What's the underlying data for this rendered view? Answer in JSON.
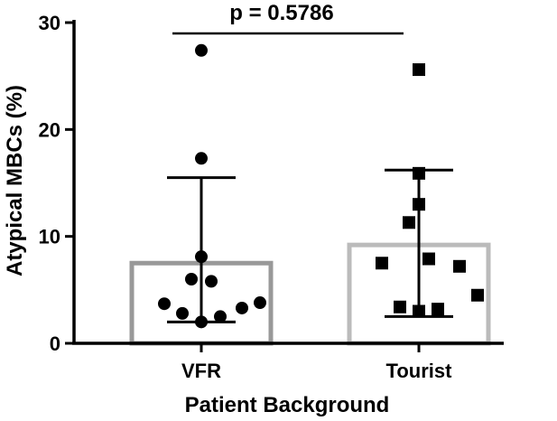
{
  "chart_data": {
    "type": "bar",
    "categories": [
      "VFR",
      "Tourist"
    ],
    "xlabel": "Patient Background",
    "ylabel": "Atypical MBCs (%)",
    "ylim": [
      0,
      30
    ],
    "yticks": [
      0,
      10,
      20,
      30
    ],
    "grid": false,
    "series": [
      {
        "category": "VFR",
        "mean": 7.5,
        "error_low": 2.0,
        "error_high": 15.5,
        "marker": "circle",
        "bar_color": "#999999",
        "points": [
          27.4,
          17.3,
          8.1,
          6.0,
          5.8,
          3.7,
          3.3,
          3.8,
          2.8,
          2.5,
          2.0
        ]
      },
      {
        "category": "Tourist",
        "mean": 9.2,
        "error_low": 2.5,
        "error_high": 16.2,
        "marker": "square",
        "bar_color": "#bbbbbb",
        "points": [
          25.6,
          15.9,
          13.0,
          11.3,
          7.9,
          7.5,
          7.2,
          4.5,
          3.4,
          3.2,
          3.0
        ]
      }
    ],
    "annotation": {
      "text": "p = 0.5786"
    }
  }
}
